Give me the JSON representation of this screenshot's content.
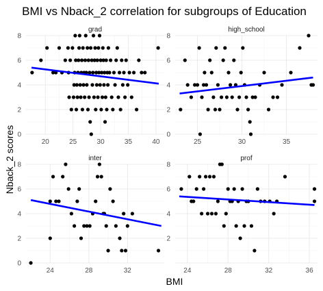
{
  "chart_data": {
    "type": "scatter",
    "title": "BMI vs Nback_2 correlation for subgroups of Education",
    "xlabel": "BMI",
    "ylabel": "Nback_2 scores",
    "grid": true,
    "point_color": "#000000",
    "line_color": "#0000ff",
    "panels": [
      {
        "name": "grad",
        "xlim": [
          16.5,
          41.5
        ],
        "ylim": [
          0,
          8
        ],
        "xticks": [
          20,
          25,
          30,
          35,
          40
        ],
        "yticks": [
          0,
          2,
          4,
          6,
          8
        ],
        "fit": {
          "x": [
            17.5,
            40.5
          ],
          "y": [
            5.4,
            4.1
          ]
        },
        "points": [
          [
            17.6,
            5
          ],
          [
            19.2,
            6
          ],
          [
            20.3,
            7
          ],
          [
            21.4,
            5
          ],
          [
            21.9,
            5
          ],
          [
            22.5,
            7
          ],
          [
            23,
            5
          ],
          [
            23.6,
            6
          ],
          [
            24.1,
            7
          ],
          [
            24.2,
            5
          ],
          [
            24.3,
            3
          ],
          [
            24.5,
            6
          ],
          [
            24.7,
            2
          ],
          [
            24.9,
            7
          ],
          [
            25.1,
            3
          ],
          [
            25.2,
            4
          ],
          [
            25.3,
            5
          ],
          [
            25.4,
            8
          ],
          [
            25.5,
            6
          ],
          [
            25.6,
            2
          ],
          [
            25.7,
            4
          ],
          [
            25.8,
            3
          ],
          [
            25.9,
            5
          ],
          [
            26,
            6
          ],
          [
            26.1,
            7
          ],
          [
            26.2,
            8
          ],
          [
            26.3,
            4
          ],
          [
            26.4,
            3
          ],
          [
            26.5,
            5
          ],
          [
            26.6,
            6
          ],
          [
            26.7,
            2
          ],
          [
            26.8,
            7
          ],
          [
            26.9,
            4
          ],
          [
            27,
            5
          ],
          [
            27.1,
            3
          ],
          [
            27.2,
            6
          ],
          [
            27.3,
            8
          ],
          [
            27.4,
            5
          ],
          [
            27.5,
            4
          ],
          [
            27.6,
            7
          ],
          [
            27.7,
            2
          ],
          [
            27.8,
            6
          ],
          [
            27.9,
            3
          ],
          [
            28,
            5
          ],
          [
            28.1,
            1
          ],
          [
            28.2,
            7
          ],
          [
            28.3,
            0
          ],
          [
            28.4,
            6
          ],
          [
            28.5,
            4
          ],
          [
            28.6,
            5
          ],
          [
            28.7,
            8
          ],
          [
            28.8,
            3
          ],
          [
            28.9,
            6
          ],
          [
            29,
            7
          ],
          [
            29.1,
            2
          ],
          [
            29.2,
            5
          ],
          [
            29.3,
            4
          ],
          [
            29.4,
            6
          ],
          [
            29.5,
            3
          ],
          [
            29.6,
            7
          ],
          [
            29.7,
            5
          ],
          [
            29.8,
            8
          ],
          [
            29.9,
            4
          ],
          [
            30,
            6
          ],
          [
            30.1,
            2
          ],
          [
            30.2,
            5
          ],
          [
            30.3,
            3
          ],
          [
            30.4,
            7
          ],
          [
            30.5,
            6
          ],
          [
            30.6,
            4
          ],
          [
            30.7,
            5
          ],
          [
            30.8,
            1
          ],
          [
            30.9,
            3
          ],
          [
            31,
            6
          ],
          [
            31.1,
            2
          ],
          [
            31.2,
            5
          ],
          [
            31.3,
            4
          ],
          [
            31.4,
            7
          ],
          [
            31.6,
            5
          ],
          [
            31.8,
            6
          ],
          [
            32,
            3
          ],
          [
            32.2,
            2
          ],
          [
            32.4,
            5
          ],
          [
            32.6,
            4
          ],
          [
            32.8,
            6
          ],
          [
            33,
            7
          ],
          [
            33.2,
            3
          ],
          [
            33.4,
            5
          ],
          [
            33.6,
            2
          ],
          [
            33.8,
            6
          ],
          [
            34,
            4
          ],
          [
            34.2,
            5
          ],
          [
            34.4,
            3
          ],
          [
            34.6,
            6
          ],
          [
            34.9,
            4
          ],
          [
            35.2,
            5
          ],
          [
            35.6,
            3
          ],
          [
            36,
            5
          ],
          [
            36.5,
            2
          ],
          [
            36.9,
            6
          ],
          [
            37.4,
            5
          ],
          [
            38,
            5
          ],
          [
            40.4,
            7
          ]
        ]
      },
      {
        "name": "high_school",
        "xlim": [
          22.5,
          38.5
        ],
        "ylim": [
          0,
          8
        ],
        "xticks": [
          25,
          30,
          35
        ],
        "yticks": [
          0,
          2,
          4,
          6,
          8
        ],
        "fit": {
          "x": [
            23,
            38
          ],
          "y": [
            3.3,
            4.6
          ]
        },
        "points": [
          [
            23.1,
            2
          ],
          [
            23.6,
            6
          ],
          [
            23.9,
            4
          ],
          [
            24.3,
            3
          ],
          [
            24.7,
            4
          ],
          [
            25,
            4
          ],
          [
            25.2,
            7
          ],
          [
            25.3,
            0
          ],
          [
            25.5,
            3
          ],
          [
            25.7,
            4
          ],
          [
            25.8,
            5
          ],
          [
            26,
            4
          ],
          [
            26.2,
            2
          ],
          [
            26.4,
            6
          ],
          [
            26.6,
            5
          ],
          [
            26.8,
            3
          ],
          [
            27,
            2
          ],
          [
            27.1,
            7
          ],
          [
            27.3,
            4
          ],
          [
            27.5,
            2
          ],
          [
            27.7,
            3
          ],
          [
            27.9,
            6
          ],
          [
            28.1,
            7
          ],
          [
            28.3,
            3
          ],
          [
            28.5,
            5
          ],
          [
            28.7,
            4
          ],
          [
            28.9,
            3
          ],
          [
            29.1,
            6
          ],
          [
            29.3,
            4
          ],
          [
            29.5,
            2
          ],
          [
            29.7,
            3
          ],
          [
            29.9,
            5
          ],
          [
            30.1,
            7
          ],
          [
            30.3,
            4
          ],
          [
            30.5,
            3
          ],
          [
            30.7,
            2
          ],
          [
            30.9,
            1
          ],
          [
            31,
            0
          ],
          [
            31.2,
            3
          ],
          [
            31.5,
            3
          ],
          [
            32,
            4
          ],
          [
            32.5,
            5
          ],
          [
            33,
            2
          ],
          [
            33.5,
            3
          ],
          [
            34,
            3
          ],
          [
            34.5,
            4
          ],
          [
            35.5,
            5
          ],
          [
            36.5,
            7
          ],
          [
            37.5,
            8
          ],
          [
            37.8,
            4
          ],
          [
            38,
            4
          ]
        ]
      },
      {
        "name": "inter",
        "xlim": [
          21.5,
          35.8
        ],
        "ylim": [
          0,
          8
        ],
        "xticks": [
          24,
          28,
          32
        ],
        "yticks": [
          0,
          2,
          4,
          6,
          8
        ],
        "fit": {
          "x": [
            22,
            35.5
          ],
          "y": [
            5.1,
            3.0
          ]
        },
        "points": [
          [
            22,
            0
          ],
          [
            24,
            2
          ],
          [
            24,
            5
          ],
          [
            24.3,
            7
          ],
          [
            24.6,
            5
          ],
          [
            24.9,
            5
          ],
          [
            25.3,
            7
          ],
          [
            25.6,
            8
          ],
          [
            25.9,
            6
          ],
          [
            26.2,
            4
          ],
          [
            26.5,
            3
          ],
          [
            26.8,
            5
          ],
          [
            27,
            6
          ],
          [
            27.2,
            2
          ],
          [
            27.5,
            3
          ],
          [
            27.8,
            3
          ],
          [
            28.1,
            3
          ],
          [
            28.4,
            4
          ],
          [
            28.7,
            5
          ],
          [
            28.9,
            7
          ],
          [
            29.1,
            8
          ],
          [
            29.3,
            7
          ],
          [
            29.5,
            4
          ],
          [
            29.6,
            4
          ],
          [
            29.8,
            3
          ],
          [
            30,
            1
          ],
          [
            30.2,
            6
          ],
          [
            30.5,
            5
          ],
          [
            30.8,
            3
          ],
          [
            31.2,
            2
          ],
          [
            31.4,
            1
          ],
          [
            31.6,
            4
          ],
          [
            31.8,
            1
          ],
          [
            32,
            3
          ],
          [
            32.5,
            4
          ],
          [
            35.2,
            1
          ]
        ]
      },
      {
        "name": "prof",
        "xlim": [
          22.8,
          36.8
        ],
        "ylim": [
          0,
          8
        ],
        "xticks": [
          24,
          28,
          32,
          36
        ],
        "yticks": [
          2,
          4,
          6,
          8
        ],
        "fit": {
          "x": [
            23.2,
            36.5
          ],
          "y": [
            5.4,
            4.7
          ]
        },
        "points": [
          [
            23.4,
            6
          ],
          [
            24.2,
            7
          ],
          [
            24.4,
            5
          ],
          [
            24.6,
            5
          ],
          [
            24.9,
            6
          ],
          [
            25.2,
            7
          ],
          [
            25.4,
            4
          ],
          [
            25.6,
            6
          ],
          [
            25.8,
            7
          ],
          [
            26,
            4
          ],
          [
            26.2,
            7
          ],
          [
            26.4,
            4
          ],
          [
            26.6,
            7
          ],
          [
            26.8,
            4
          ],
          [
            27,
            5
          ],
          [
            27.2,
            8
          ],
          [
            27.4,
            8
          ],
          [
            27.6,
            3
          ],
          [
            27.8,
            4
          ],
          [
            28,
            6
          ],
          [
            28.2,
            5
          ],
          [
            28.4,
            5
          ],
          [
            28.6,
            6
          ],
          [
            28.8,
            3
          ],
          [
            29,
            5
          ],
          [
            29.2,
            2
          ],
          [
            29.4,
            6
          ],
          [
            29.6,
            3
          ],
          [
            29.8,
            5
          ],
          [
            30,
            5
          ],
          [
            30.3,
            3
          ],
          [
            30.6,
            1
          ],
          [
            30.9,
            6
          ],
          [
            31.2,
            5
          ],
          [
            31.6,
            5
          ],
          [
            32.1,
            5
          ],
          [
            32.5,
            4
          ],
          [
            32.8,
            5
          ],
          [
            33.6,
            7
          ],
          [
            36.5,
            6
          ],
          [
            36.5,
            5
          ]
        ]
      }
    ]
  }
}
